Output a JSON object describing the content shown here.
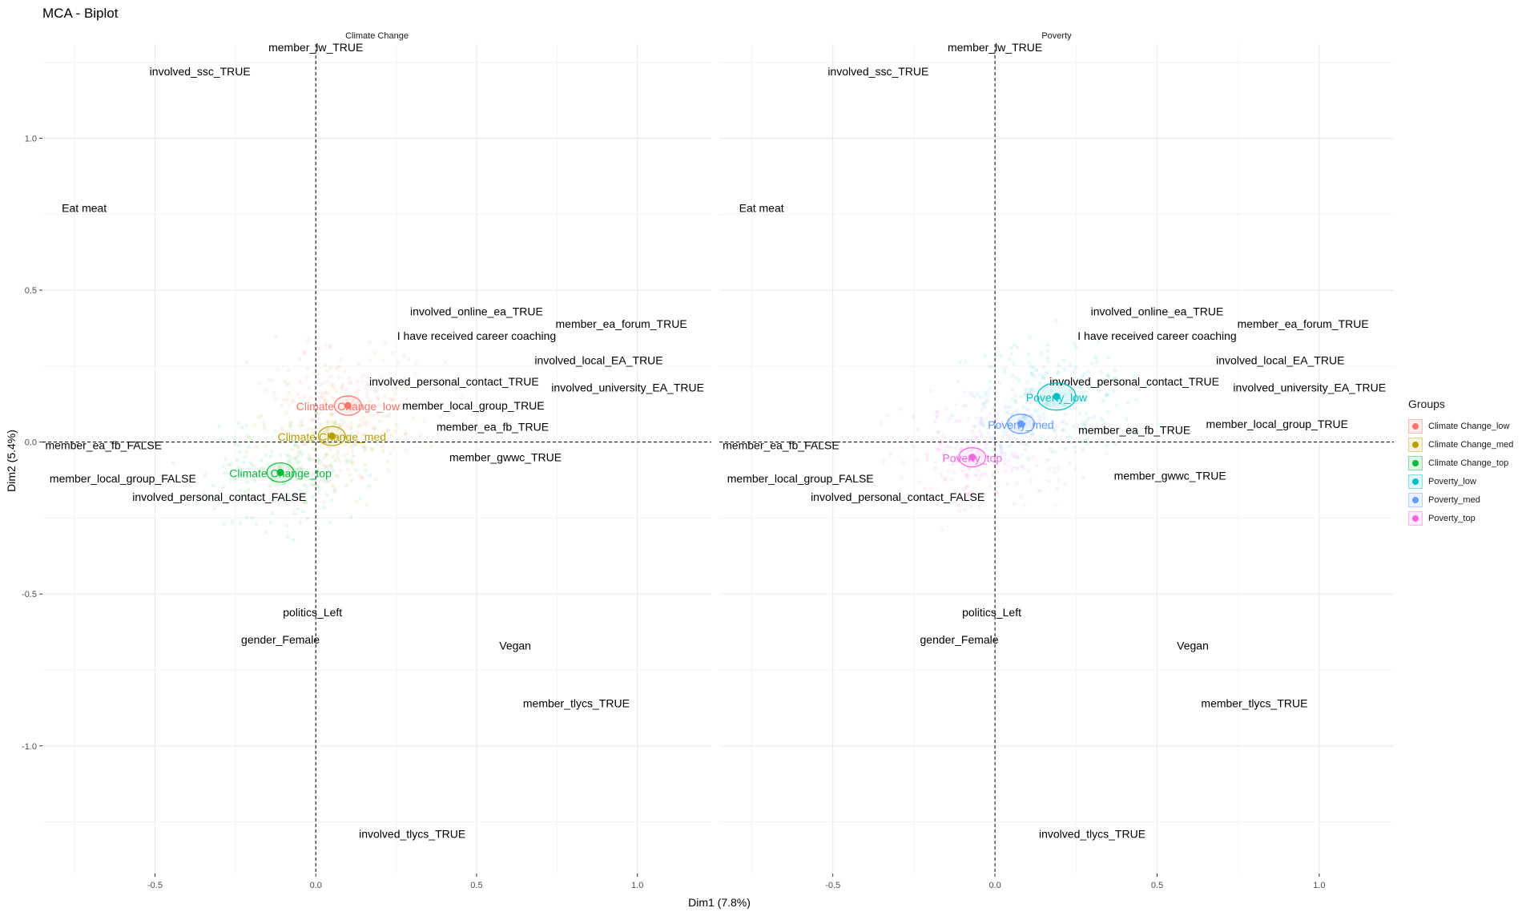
{
  "title": "MCA - Biplot",
  "x_axis_label": "Dim1 (7.8%)",
  "y_axis_label": "Dim2 (5.4%)",
  "x_tick_labels": [
    "-0.5",
    "0.0",
    "0.5",
    "1.0"
  ],
  "y_tick_labels": [
    "1.0",
    "0.5",
    "0.0",
    "-0.5",
    "-1.0"
  ],
  "legend": {
    "title": "Groups",
    "items": [
      {
        "label": "Climate Change_low",
        "color": "#F8766D"
      },
      {
        "label": "Climate Change_med",
        "color": "#B79F00"
      },
      {
        "label": "Climate Change_top",
        "color": "#00BA38"
      },
      {
        "label": "Poverty_low",
        "color": "#00BFC4"
      },
      {
        "label": "Poverty_med",
        "color": "#619CFF"
      },
      {
        "label": "Poverty_top",
        "color": "#F564E3"
      }
    ]
  },
  "chart_data": {
    "type": "scatter",
    "title": "MCA - Biplot",
    "xlabel": "Dim1 (7.8%)",
    "ylabel": "Dim2 (5.4%)",
    "xlim": [
      -0.85,
      1.23
    ],
    "ylim": [
      -1.42,
      1.31
    ],
    "grid": true,
    "legend_position": "right",
    "reference_lines": {
      "x": 0,
      "y": 0,
      "style": "dashed"
    },
    "facets": [
      {
        "name": "Climate Change",
        "variables": [
          {
            "label": "member_lw_TRUE",
            "x": 0.0,
            "y": 1.3
          },
          {
            "label": "involved_ssc_TRUE",
            "x": -0.36,
            "y": 1.22
          },
          {
            "label": "Eat meat",
            "x": -0.72,
            "y": 0.77
          },
          {
            "label": "involved_online_ea_TRUE",
            "x": 0.5,
            "y": 0.43
          },
          {
            "label": "member_ea_forum_TRUE",
            "x": 0.95,
            "y": 0.39
          },
          {
            "label": "I have received career coaching",
            "x": 0.5,
            "y": 0.35
          },
          {
            "label": "involved_local_EA_TRUE",
            "x": 0.88,
            "y": 0.27
          },
          {
            "label": "involved_personal_contact_TRUE",
            "x": 0.43,
            "y": 0.2
          },
          {
            "label": "involved_university_EA_TRUE",
            "x": 0.97,
            "y": 0.18
          },
          {
            "label": "member_local_group_TRUE",
            "x": 0.49,
            "y": 0.12
          },
          {
            "label": "member_ea_fb_TRUE",
            "x": 0.55,
            "y": 0.05
          },
          {
            "label": "member_ea_fb_FALSE",
            "x": -0.66,
            "y": -0.01
          },
          {
            "label": "member_gwwc_TRUE",
            "x": 0.59,
            "y": -0.05
          },
          {
            "label": "member_local_group_FALSE",
            "x": -0.6,
            "y": -0.12
          },
          {
            "label": "involved_personal_contact_FALSE",
            "x": -0.3,
            "y": -0.18
          },
          {
            "label": "politics_Left",
            "x": -0.01,
            "y": -0.56
          },
          {
            "label": "gender_Female",
            "x": -0.11,
            "y": -0.65
          },
          {
            "label": "Vegan",
            "x": 0.62,
            "y": -0.67
          },
          {
            "label": "member_tlycs_TRUE",
            "x": 0.81,
            "y": -0.86
          },
          {
            "label": "involved_tlycs_TRUE",
            "x": 0.3,
            "y": -1.29
          }
        ],
        "groups": [
          {
            "label": "Climate Change_low",
            "x": 0.1,
            "y": 0.12,
            "color": "#F8766D"
          },
          {
            "label": "Climate Change_med",
            "x": 0.05,
            "y": 0.02,
            "color": "#B79F00"
          },
          {
            "label": "Climate Change_top",
            "x": -0.11,
            "y": -0.1,
            "color": "#00BA38"
          }
        ]
      },
      {
        "name": "Poverty",
        "variables": [
          {
            "label": "member_lw_TRUE",
            "x": 0.0,
            "y": 1.3
          },
          {
            "label": "involved_ssc_TRUE",
            "x": -0.36,
            "y": 1.22
          },
          {
            "label": "Eat meat",
            "x": -0.72,
            "y": 0.77
          },
          {
            "label": "involved_online_ea_TRUE",
            "x": 0.5,
            "y": 0.43
          },
          {
            "label": "member_ea_forum_TRUE",
            "x": 0.95,
            "y": 0.39
          },
          {
            "label": "I have received career coaching",
            "x": 0.5,
            "y": 0.35
          },
          {
            "label": "involved_local_EA_TRUE",
            "x": 0.88,
            "y": 0.27
          },
          {
            "label": "involved_personal_contact_TRUE",
            "x": 0.43,
            "y": 0.2
          },
          {
            "label": "involved_university_EA_TRUE",
            "x": 0.97,
            "y": 0.18
          },
          {
            "label": "member_local_group_TRUE",
            "x": 0.87,
            "y": 0.06
          },
          {
            "label": "member_ea_fb_TRUE",
            "x": 0.43,
            "y": 0.04
          },
          {
            "label": "member_ea_fb_FALSE",
            "x": -0.66,
            "y": -0.01
          },
          {
            "label": "member_gwwc_TRUE",
            "x": 0.54,
            "y": -0.11
          },
          {
            "label": "member_local_group_FALSE",
            "x": -0.6,
            "y": -0.12
          },
          {
            "label": "involved_personal_contact_FALSE",
            "x": -0.3,
            "y": -0.18
          },
          {
            "label": "politics_Left",
            "x": -0.01,
            "y": -0.56
          },
          {
            "label": "gender_Female",
            "x": -0.11,
            "y": -0.65
          },
          {
            "label": "Vegan",
            "x": 0.61,
            "y": -0.67
          },
          {
            "label": "member_tlycs_TRUE",
            "x": 0.8,
            "y": -0.86
          },
          {
            "label": "involved_tlycs_TRUE",
            "x": 0.3,
            "y": -1.29
          }
        ],
        "groups": [
          {
            "label": "Poverty_low",
            "x": 0.19,
            "y": 0.15,
            "color": "#00BFC4"
          },
          {
            "label": "Poverty_med",
            "x": 0.08,
            "y": 0.06,
            "color": "#619CFF"
          },
          {
            "label": "Poverty_top",
            "x": -0.07,
            "y": -0.05,
            "color": "#F564E3"
          }
        ]
      }
    ]
  }
}
